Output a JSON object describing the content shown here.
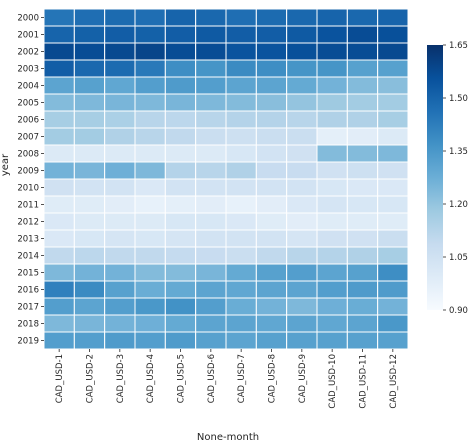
{
  "chart_data": {
    "type": "heatmap",
    "title": "",
    "xlabel": "None-month",
    "ylabel": "year",
    "x_categories": [
      "CAD_USD-1",
      "CAD_USD-2",
      "CAD_USD-3",
      "CAD_USD-4",
      "CAD_USD-5",
      "CAD_USD-6",
      "CAD_USD-7",
      "CAD_USD-8",
      "CAD_USD-9",
      "CAD_USD-10",
      "CAD_USD-11",
      "CAD_USD-12"
    ],
    "y_categories": [
      "2000",
      "2001",
      "2002",
      "2003",
      "2004",
      "2005",
      "2006",
      "2007",
      "2008",
      "2009",
      "2010",
      "2011",
      "2012",
      "2013",
      "2014",
      "2015",
      "2016",
      "2017",
      "2018",
      "2019"
    ],
    "values": [
      [
        1.45,
        1.47,
        1.48,
        1.47,
        1.5,
        1.49,
        1.47,
        1.48,
        1.49,
        1.5,
        1.49,
        1.5
      ],
      [
        1.5,
        1.51,
        1.52,
        1.51,
        1.52,
        1.53,
        1.52,
        1.52,
        1.53,
        1.55,
        1.57,
        1.56
      ],
      [
        1.58,
        1.57,
        1.58,
        1.59,
        1.57,
        1.57,
        1.55,
        1.55,
        1.56,
        1.57,
        1.57,
        1.58
      ],
      [
        1.52,
        1.49,
        1.48,
        1.44,
        1.38,
        1.36,
        1.39,
        1.38,
        1.36,
        1.36,
        1.32,
        1.32
      ],
      [
        1.31,
        1.32,
        1.3,
        1.33,
        1.34,
        1.33,
        1.31,
        1.31,
        1.29,
        1.26,
        1.23,
        1.22
      ],
      [
        1.23,
        1.24,
        1.25,
        1.24,
        1.25,
        1.24,
        1.23,
        1.22,
        1.2,
        1.18,
        1.17,
        1.17
      ],
      [
        1.16,
        1.16,
        1.15,
        1.12,
        1.11,
        1.12,
        1.13,
        1.13,
        1.12,
        1.14,
        1.14,
        1.16
      ],
      [
        1.17,
        1.17,
        1.14,
        1.12,
        1.1,
        1.07,
        1.06,
        1.07,
        1.07,
        0.97,
        0.98,
        1.0
      ],
      [
        1.0,
        1.0,
        1.0,
        1.0,
        1.0,
        1.0,
        1.02,
        1.04,
        1.05,
        1.23,
        1.23,
        1.24
      ],
      [
        1.26,
        1.25,
        1.27,
        1.24,
        1.13,
        1.12,
        1.14,
        1.08,
        1.08,
        1.05,
        1.06,
        1.05
      ],
      [
        1.05,
        1.04,
        1.04,
        1.01,
        1.04,
        1.04,
        1.04,
        1.04,
        1.04,
        1.02,
        1.01,
        1.01
      ],
      [
        0.99,
        0.99,
        0.98,
        0.96,
        0.97,
        0.98,
        0.96,
        0.98,
        1.01,
        1.03,
        1.02,
        1.02
      ],
      [
        1.01,
        1.0,
        1.0,
        1.0,
        1.02,
        1.02,
        1.01,
        0.99,
        0.98,
        0.99,
        0.99,
        0.99
      ],
      [
        1.01,
        1.02,
        1.03,
        1.02,
        1.03,
        1.04,
        1.04,
        1.04,
        1.03,
        1.05,
        1.05,
        1.07
      ],
      [
        1.1,
        1.11,
        1.1,
        1.1,
        1.09,
        1.08,
        1.07,
        1.1,
        1.12,
        1.13,
        1.14,
        1.16
      ],
      [
        1.24,
        1.26,
        1.26,
        1.23,
        1.23,
        1.25,
        1.29,
        1.32,
        1.33,
        1.31,
        1.32,
        1.38
      ],
      [
        1.42,
        1.39,
        1.32,
        1.28,
        1.29,
        1.31,
        1.3,
        1.31,
        1.31,
        1.33,
        1.34,
        1.34
      ],
      [
        1.33,
        1.31,
        1.33,
        1.35,
        1.37,
        1.33,
        1.28,
        1.26,
        1.24,
        1.27,
        1.28,
        1.26
      ],
      [
        1.24,
        1.25,
        1.26,
        1.27,
        1.29,
        1.31,
        1.31,
        1.3,
        1.31,
        1.3,
        1.31,
        1.35
      ],
      [
        1.33,
        1.33,
        1.34,
        1.33,
        1.34,
        1.32,
        1.31,
        1.32,
        1.32,
        1.32,
        1.32,
        1.32
      ]
    ],
    "colorbar": {
      "vmin": 0.9,
      "vmax": 1.65,
      "ticks": [
        "0.90",
        "1.05",
        "1.20",
        "1.35",
        "1.50",
        "1.65"
      ],
      "colormap": "Blues",
      "colors": [
        "#f7fbff",
        "#deebf7",
        "#c6dbef",
        "#9ecae1",
        "#6baed6",
        "#4292c6",
        "#2171b5",
        "#08519c",
        "#08306b"
      ]
    },
    "grid": false,
    "cell_border_color": "#ffffff"
  }
}
